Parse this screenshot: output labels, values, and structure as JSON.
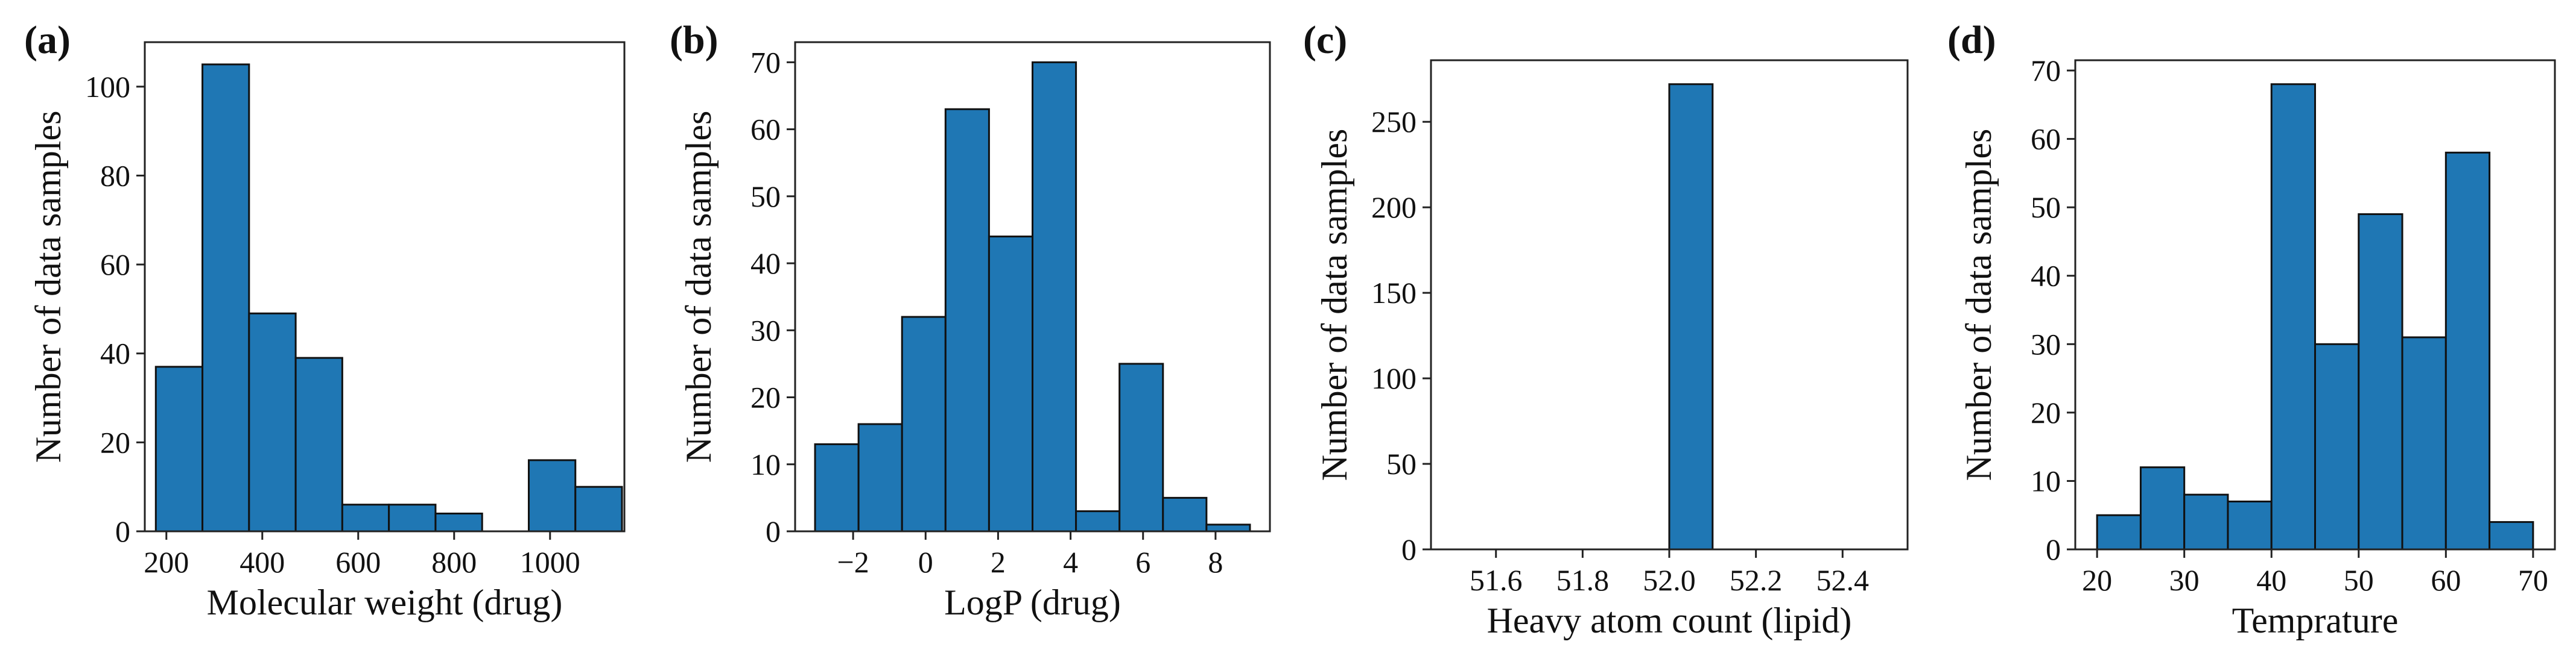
{
  "colors": {
    "bar_fill": "#1f77b4",
    "bar_edge": "#111111",
    "axis": "#222222",
    "text": "#111111"
  },
  "chart_data": [
    {
      "panel": "(a)",
      "type": "bar",
      "xlabel": "Molecular weight (drug)",
      "ylabel": "Number of data samples",
      "xlim": [
        155,
        1155
      ],
      "ylim": [
        0,
        110
      ],
      "xticks": [
        200,
        400,
        600,
        800,
        1000
      ],
      "xtick_labels": [
        "200",
        "400",
        "600",
        "800",
        "1000"
      ],
      "yticks": [
        0,
        20,
        40,
        60,
        80,
        100
      ],
      "ytick_labels": [
        "0",
        "20",
        "40",
        "60",
        "80",
        "100"
      ],
      "bin_edges": [
        178,
        275.2,
        372.4,
        469.6,
        566.8,
        664,
        761.2,
        858.4,
        955.6,
        1052.8,
        1150
      ],
      "values": [
        37,
        105,
        49,
        39,
        6,
        6,
        4,
        0,
        16,
        10
      ]
    },
    {
      "panel": "(b)",
      "type": "bar",
      "xlabel": "LogP (drug)",
      "ylabel": "Number of data samples",
      "xlim": [
        -3.6,
        9.5
      ],
      "ylim": [
        0,
        73
      ],
      "xticks": [
        -2,
        0,
        2,
        4,
        6,
        8
      ],
      "xtick_labels": [
        "−2",
        "0",
        "2",
        "4",
        "6",
        "8"
      ],
      "yticks": [
        0,
        10,
        20,
        30,
        40,
        50,
        60,
        70
      ],
      "ytick_labels": [
        "0",
        "10",
        "20",
        "30",
        "40",
        "50",
        "60",
        "70"
      ],
      "bin_edges": [
        -3.05,
        -1.85,
        -0.65,
        0.55,
        1.75,
        2.95,
        4.15,
        5.35,
        6.55,
        7.75,
        8.95
      ],
      "values": [
        13,
        16,
        32,
        63,
        44,
        70,
        3,
        25,
        5,
        1
      ]
    },
    {
      "panel": "(c)",
      "type": "bar",
      "xlabel": "Heavy atom count (lipid)",
      "ylabel": "Number of data samples",
      "xlim": [
        51.45,
        52.55
      ],
      "ylim": [
        0,
        286
      ],
      "xticks": [
        51.6,
        51.8,
        52.0,
        52.2,
        52.4
      ],
      "xtick_labels": [
        "51.6",
        "51.8",
        "52.0",
        "52.2",
        "52.4"
      ],
      "yticks": [
        0,
        50,
        100,
        150,
        200,
        250
      ],
      "ytick_labels": [
        "0",
        "50",
        "100",
        "150",
        "200",
        "250"
      ],
      "bin_edges": [
        51.5,
        51.6,
        51.7,
        51.8,
        51.9,
        52.0,
        52.1,
        52.2,
        52.3,
        52.4,
        52.5
      ],
      "values": [
        0,
        0,
        0,
        0,
        0,
        272,
        0,
        0,
        0,
        0
      ]
    },
    {
      "panel": "(d)",
      "type": "bar",
      "xlabel": "Temprature",
      "ylabel": "Number of data samples",
      "xlim": [
        17.5,
        72.5
      ],
      "ylim": [
        0,
        71.5
      ],
      "xticks": [
        20,
        30,
        40,
        50,
        60,
        70
      ],
      "xtick_labels": [
        "20",
        "30",
        "40",
        "50",
        "60",
        "70"
      ],
      "yticks": [
        0,
        10,
        20,
        30,
        40,
        50,
        60,
        70
      ],
      "ytick_labels": [
        "0",
        "10",
        "20",
        "30",
        "40",
        "50",
        "60",
        "70"
      ],
      "bin_edges": [
        20,
        25,
        30,
        35,
        40,
        45,
        50,
        55,
        60,
        65,
        70
      ],
      "values": [
        5,
        12,
        8,
        7,
        68,
        30,
        49,
        31,
        58,
        4
      ]
    }
  ]
}
